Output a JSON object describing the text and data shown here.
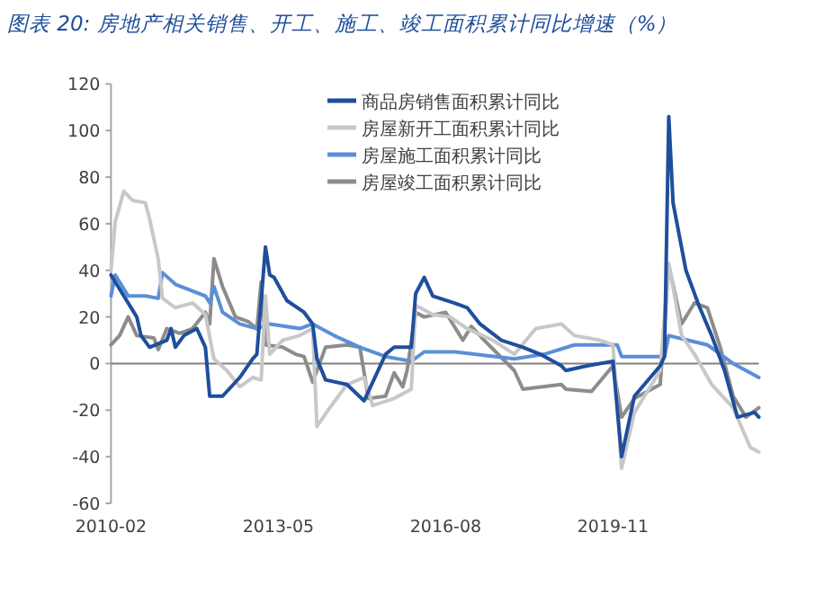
{
  "chart_data": {
    "type": "line",
    "title": "图表 20: 房地产相关销售、开工、施工、竣工面积累计同比增速（%）",
    "xlim": [
      "2010-02",
      "2022-09"
    ],
    "xticks": [
      "2010-02",
      "2013-05",
      "2016-08",
      "2019-11"
    ],
    "ylim": [
      -60,
      120
    ],
    "yticks": [
      -60,
      -40,
      -20,
      0,
      20,
      40,
      60,
      80,
      100,
      120
    ],
    "legend": "top right",
    "marker": "none",
    "line_style": "solid",
    "series": [
      {
        "name": "商品房销售面积累计同比",
        "color": "#1f4e9c",
        "x": [
          "2010-02",
          "2010-08",
          "2010-09",
          "2010-11",
          "2011-03",
          "2011-04",
          "2011-05",
          "2011-07",
          "2011-10",
          "2011-12",
          "2012-01",
          "2012-04",
          "2012-08",
          "2012-11",
          "2012-12",
          "2013-02",
          "2013-03",
          "2013-04",
          "2013-07",
          "2013-11",
          "2014-01",
          "2014-02",
          "2014-04",
          "2014-09",
          "2015-01",
          "2015-06",
          "2015-08",
          "2015-12",
          "2016-01",
          "2016-03",
          "2016-05",
          "2016-10",
          "2017-01",
          "2017-04",
          "2017-09",
          "2018-02",
          "2018-06",
          "2018-11",
          "2018-12",
          "2019-05",
          "2019-11",
          "2020-01",
          "2020-04",
          "2020-10",
          "2020-11",
          "2020-12",
          "2021-01",
          "2021-04",
          "2021-07",
          "2021-10",
          "2022-01",
          "2022-04",
          "2022-08",
          "2022-09"
        ],
        "values": [
          38,
          20,
          12,
          7,
          10,
          15,
          7,
          12,
          15,
          7,
          -14,
          -14,
          -6,
          2,
          4,
          50,
          38,
          37,
          27,
          22,
          17,
          2,
          -7,
          -9,
          -16,
          4,
          7,
          7,
          30,
          37,
          29,
          26,
          24,
          17,
          10,
          7,
          4,
          -1,
          -3,
          -1,
          1,
          -40,
          -14,
          -1,
          3,
          106,
          69,
          40,
          25,
          12,
          -3,
          -23,
          -21,
          -23
        ]
      },
      {
        "name": "房屋新开工面积累计同比",
        "color": "#c8c8c8",
        "x": [
          "2010-02",
          "2010-03",
          "2010-05",
          "2010-07",
          "2010-10",
          "2010-11",
          "2011-01",
          "2011-02",
          "2011-05",
          "2011-09",
          "2011-12",
          "2012-02",
          "2012-05",
          "2012-08",
          "2012-11",
          "2013-01",
          "2013-02",
          "2013-03",
          "2013-06",
          "2013-10",
          "2014-01",
          "2014-02",
          "2014-05",
          "2014-09",
          "2015-01",
          "2015-03",
          "2015-08",
          "2015-12",
          "2016-01",
          "2016-05",
          "2016-09",
          "2017-01",
          "2017-07",
          "2017-12",
          "2018-05",
          "2018-11",
          "2019-02",
          "2019-08",
          "2019-11",
          "2020-01",
          "2020-04",
          "2020-10",
          "2020-12",
          "2021-03",
          "2021-06",
          "2021-10",
          "2022-03",
          "2022-07",
          "2022-09"
        ],
        "values": [
          40,
          61,
          74,
          70,
          69,
          62,
          45,
          28,
          24,
          26,
          21,
          2,
          -3,
          -10,
          -6,
          -7,
          29,
          4,
          10,
          12,
          15,
          -27,
          -19,
          -9,
          -6,
          -18,
          -15,
          -11,
          25,
          21,
          20,
          15,
          10,
          4,
          15,
          17,
          12,
          10,
          8,
          -45,
          -21,
          -3,
          43,
          12,
          4,
          -9,
          -19,
          -36,
          -38
        ]
      },
      {
        "name": "房屋施工面积累计同比",
        "color": "#5b8fd6",
        "x": [
          "2010-02",
          "2010-03",
          "2010-04",
          "2010-06",
          "2010-10",
          "2011-01",
          "2011-02",
          "2011-05",
          "2011-12",
          "2012-01",
          "2012-02",
          "2012-04",
          "2012-08",
          "2012-12",
          "2013-03",
          "2013-10",
          "2014-01",
          "2014-06",
          "2014-12",
          "2015-06",
          "2015-12",
          "2016-03",
          "2016-10",
          "2017-12",
          "2018-07",
          "2019-02",
          "2019-12",
          "2020-01",
          "2020-11",
          "2020-12",
          "2021-09",
          "2022-03",
          "2022-09"
        ],
        "values": [
          29,
          38,
          35,
          29,
          29,
          28,
          39,
          34,
          29,
          26,
          33,
          22,
          17,
          15,
          17,
          15,
          17,
          12,
          7,
          3,
          1,
          5,
          5,
          2,
          4,
          8,
          8,
          3,
          3,
          12,
          8,
          0,
          -6
        ]
      },
      {
        "name": "房屋竣工面积累计同比",
        "color": "#8c8c8c",
        "x": [
          "2010-02",
          "2010-04",
          "2010-06",
          "2010-08",
          "2010-12",
          "2011-01",
          "2011-03",
          "2011-06",
          "2011-09",
          "2011-12",
          "2012-01",
          "2012-02",
          "2012-04",
          "2012-07",
          "2012-10",
          "2012-12",
          "2013-01",
          "2013-02",
          "2013-06",
          "2013-09",
          "2013-11",
          "2014-01",
          "2014-04",
          "2014-09",
          "2014-12",
          "2015-02",
          "2015-06",
          "2015-08",
          "2015-10",
          "2015-11",
          "2016-01",
          "2016-03",
          "2016-08",
          "2016-12",
          "2017-02",
          "2017-05",
          "2017-12",
          "2018-02",
          "2018-11",
          "2018-12",
          "2019-06",
          "2019-11",
          "2020-01",
          "2020-04",
          "2020-10",
          "2020-12",
          "2021-03",
          "2021-06",
          "2021-09",
          "2021-12",
          "2022-03",
          "2022-06",
          "2022-09"
        ],
        "values": [
          8,
          12,
          20,
          12,
          11,
          6,
          15,
          13,
          15,
          22,
          17,
          45,
          33,
          20,
          18,
          15,
          35,
          8,
          7,
          4,
          3,
          -8,
          7,
          8,
          7,
          -15,
          -14,
          -4,
          -10,
          -3,
          22,
          20,
          22,
          10,
          16,
          10,
          -3,
          -11,
          -9,
          -11,
          -12,
          -1,
          -23,
          -15,
          -9,
          42,
          17,
          26,
          24,
          7,
          -14,
          -23,
          -19
        ]
      }
    ]
  }
}
